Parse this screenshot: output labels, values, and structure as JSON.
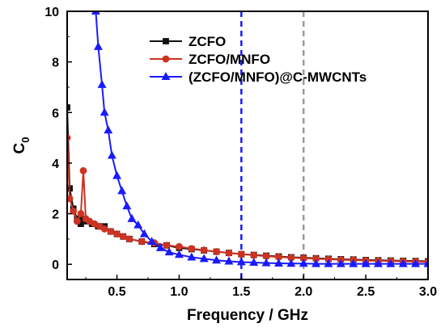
{
  "chart_data": {
    "type": "line",
    "xlabel": "Frequency / GHz",
    "ylabel_main": "C",
    "ylabel_sub": "0",
    "xlim": [
      0.1,
      3.0
    ],
    "ylim": [
      -0.6,
      10
    ],
    "xticks": [
      0.5,
      1.0,
      1.5,
      2.0,
      2.5,
      3.0
    ],
    "xtick_labels": [
      "0.5",
      "1.0",
      "1.5",
      "2.0",
      "2.5",
      "3.0"
    ],
    "yticks": [
      0,
      2,
      4,
      6,
      8,
      10
    ],
    "ytick_labels": [
      "0",
      "2",
      "4",
      "6",
      "8",
      "10"
    ],
    "reference_lines": [
      {
        "x": 1.5,
        "color": "#1a1aff",
        "style": "dashed"
      },
      {
        "x": 2.0,
        "color": "#9a9a9a",
        "style": "dashed"
      }
    ],
    "legend_position": "top-right",
    "series": [
      {
        "name": "ZCFO",
        "color": "#111111",
        "marker": "square",
        "x": [
          0.1,
          0.12,
          0.15,
          0.18,
          0.21,
          0.23,
          0.26,
          0.3,
          0.35,
          0.4,
          0.45,
          0.5,
          0.55,
          0.6,
          0.7,
          0.8,
          0.9,
          1.0,
          1.1,
          1.2,
          1.3,
          1.4,
          1.5,
          1.6,
          1.7,
          1.8,
          1.9,
          2.0,
          2.1,
          2.2,
          2.3,
          2.4,
          2.5,
          2.6,
          2.7,
          2.8,
          2.9,
          3.0
        ],
        "y": [
          6.2,
          3.0,
          2.2,
          1.8,
          1.6,
          1.8,
          1.7,
          1.6,
          1.5,
          1.5,
          1.3,
          1.2,
          1.1,
          1.0,
          0.9,
          0.8,
          0.75,
          0.65,
          0.6,
          0.55,
          0.5,
          0.45,
          0.4,
          0.37,
          0.34,
          0.31,
          0.28,
          0.26,
          0.24,
          0.22,
          0.2,
          0.19,
          0.17,
          0.16,
          0.15,
          0.14,
          0.13,
          0.12
        ]
      },
      {
        "name": "ZCFO/MNFO",
        "color": "#cc3322",
        "marker": "circle",
        "x": [
          0.1,
          0.12,
          0.15,
          0.18,
          0.21,
          0.23,
          0.25,
          0.28,
          0.32,
          0.36,
          0.4,
          0.45,
          0.5,
          0.55,
          0.6,
          0.7,
          0.8,
          0.9,
          1.0,
          1.1,
          1.2,
          1.3,
          1.4,
          1.5,
          1.6,
          1.7,
          1.8,
          1.9,
          2.0,
          2.1,
          2.2,
          2.3,
          2.4,
          2.5,
          2.6,
          2.7,
          2.8,
          2.9,
          3.0
        ],
        "y": [
          5.0,
          2.6,
          2.1,
          1.7,
          2.0,
          3.7,
          1.8,
          1.7,
          1.6,
          1.5,
          1.4,
          1.3,
          1.2,
          1.1,
          1.0,
          0.9,
          0.85,
          0.75,
          0.7,
          0.62,
          0.56,
          0.5,
          0.45,
          0.4,
          0.36,
          0.32,
          0.29,
          0.26,
          0.24,
          0.22,
          0.2,
          0.18,
          0.17,
          0.15,
          0.14,
          0.13,
          0.12,
          0.11,
          0.1
        ]
      },
      {
        "name": "(ZCFO/MNFO)@C-MWCNTs",
        "color": "#1a1aff",
        "marker": "triangle",
        "x": [
          0.33,
          0.35,
          0.38,
          0.4,
          0.43,
          0.46,
          0.5,
          0.54,
          0.58,
          0.62,
          0.67,
          0.72,
          0.78,
          0.85,
          0.92,
          1.0,
          1.1,
          1.2,
          1.3,
          1.4,
          1.5,
          1.6,
          1.7,
          1.8,
          1.9,
          2.0,
          2.1,
          2.2,
          2.3,
          2.4,
          2.5,
          2.6,
          2.7,
          2.8,
          2.9,
          3.0
        ],
        "y": [
          10.0,
          8.6,
          7.1,
          6.0,
          5.3,
          4.3,
          3.5,
          2.9,
          2.3,
          1.8,
          1.55,
          1.2,
          0.9,
          0.65,
          0.48,
          0.38,
          0.28,
          0.22,
          0.16,
          0.12,
          0.09,
          0.07,
          0.05,
          0.04,
          0.03,
          0.03,
          0.02,
          0.02,
          0.02,
          0.02,
          0.02,
          0.02,
          0.02,
          0.02,
          0.02,
          0.02
        ]
      }
    ]
  }
}
